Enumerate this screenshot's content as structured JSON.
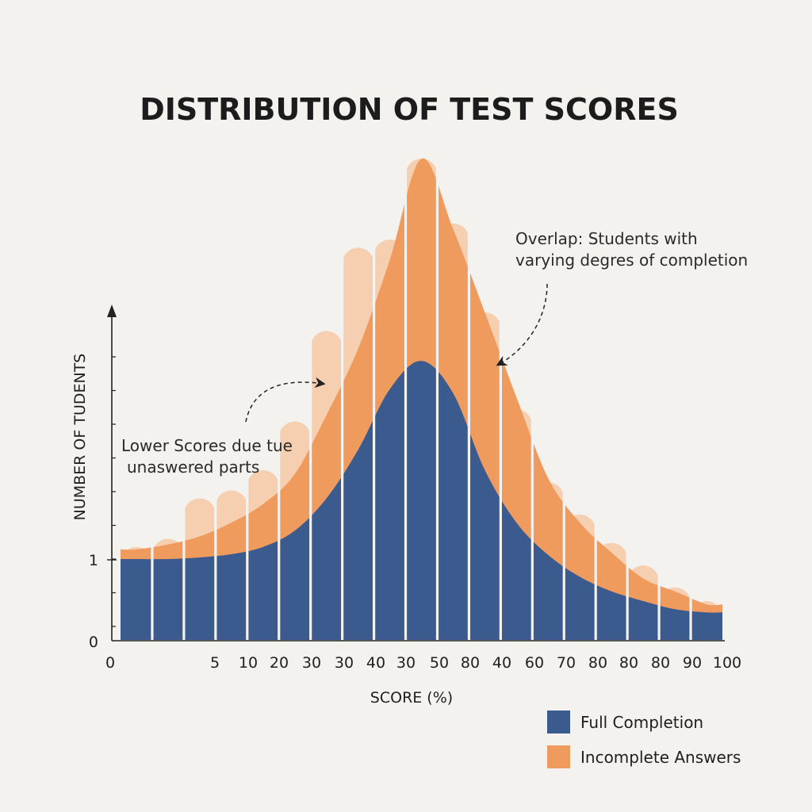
{
  "chart_data": {
    "type": "bar",
    "title": "DISTRIBUTION OF TEST SCORES",
    "xlabel": "SCORE (%)",
    "ylabel": "NUMBER OF TUDENTS",
    "x_tick_labels": [
      "0",
      "5",
      "10",
      "20",
      "30",
      "30",
      "40",
      "30",
      "50",
      "80",
      "40",
      "60",
      "70",
      "80",
      "80",
      "80",
      "90",
      "100"
    ],
    "y_tick_labels": [
      "0",
      "1"
    ],
    "ylim": [
      0,
      6
    ],
    "grid": false,
    "legend_position": "bottom-right",
    "series": [
      {
        "name": "Full Completion",
        "color": "#3b5a8e",
        "values": [
          1.0,
          1.0,
          1.02,
          1.06,
          1.15,
          1.35,
          1.75,
          2.35,
          3.1,
          3.45,
          3.05,
          2.1,
          1.45,
          1.05,
          0.78,
          0.6,
          0.48,
          0.38,
          0.34
        ]
      },
      {
        "name": "Incomplete Answers",
        "color": "#ef9b5e",
        "values": [
          1.12,
          1.18,
          1.28,
          1.45,
          1.68,
          2.05,
          2.78,
          3.6,
          4.7,
          5.95,
          5.08,
          4.05,
          3.0,
          2.0,
          1.45,
          1.08,
          0.76,
          0.6,
          0.44
        ]
      }
    ],
    "ghost_bar_tops": [
      1.15,
      1.25,
      1.75,
      1.85,
      2.1,
      2.7,
      3.82,
      4.85,
      4.95,
      5.95,
      5.15,
      4.05,
      2.85,
      1.95,
      1.55,
      1.2,
      0.92,
      0.65,
      0.48
    ],
    "annotations": [
      {
        "lines": [
          "Lower Scores due tue",
          "unaswered parts"
        ]
      },
      {
        "lines": [
          "Overlap: Students with",
          "varying degres of completion"
        ]
      }
    ]
  }
}
